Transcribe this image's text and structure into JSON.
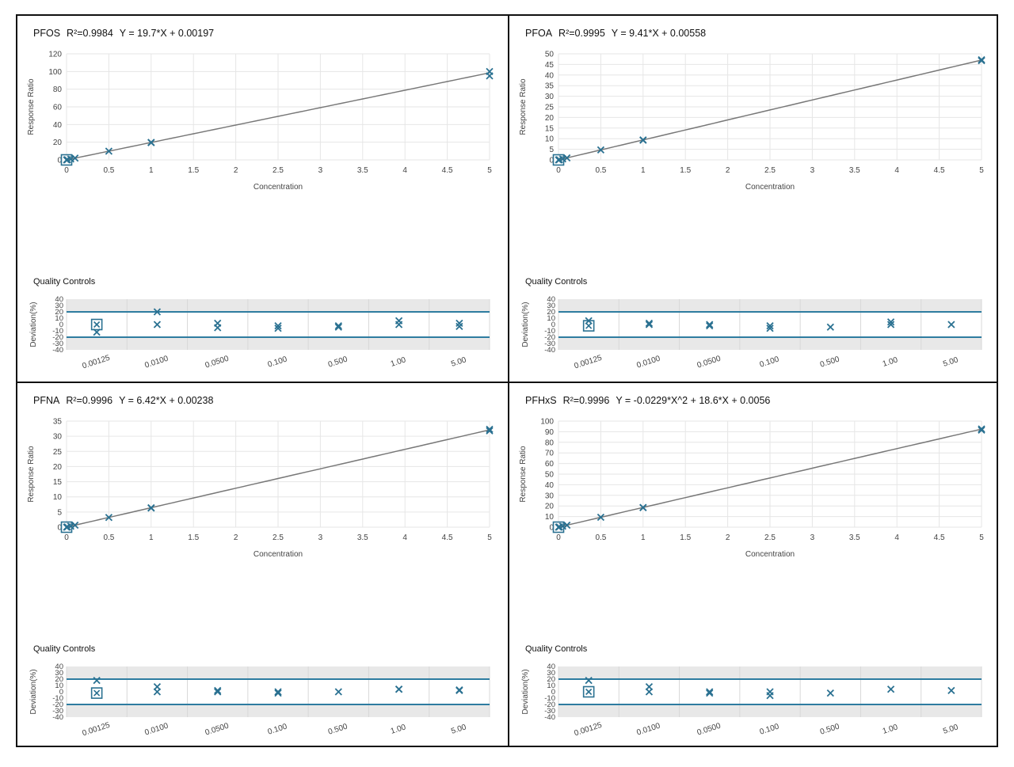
{
  "chart_data": [
    {
      "type": "scatter",
      "analyte": "PFOS",
      "r2": "R²=0.9984",
      "equation": "Y = 19.7*X + 0.00197",
      "xlabel": "Concentration",
      "ylabel": "Response Ratio",
      "xlim": [
        0,
        5
      ],
      "ylim": [
        0,
        120
      ],
      "xticks": [
        "0",
        "0.5",
        "1",
        "1.5",
        "2",
        "2.5",
        "3",
        "3.5",
        "4",
        "4.5",
        "5"
      ],
      "yticks": [
        "0",
        "20",
        "40",
        "60",
        "80",
        "100",
        "120"
      ],
      "fit": {
        "a": 0,
        "b": 19.7,
        "c": 0.00197
      },
      "points": [
        [
          0.00125,
          0.026
        ],
        [
          0.01,
          0.2
        ],
        [
          0.05,
          0.99
        ],
        [
          0.1,
          1.97
        ],
        [
          0.5,
          9.85
        ],
        [
          1,
          19.8
        ],
        [
          1,
          19.5
        ],
        [
          5,
          100
        ],
        [
          5,
          95
        ]
      ],
      "qc": {
        "title": "Quality Controls",
        "ylabel": "Deviation(%)",
        "yticks": [
          "40",
          "30",
          "20",
          "10",
          "0",
          "-10",
          "-20",
          "-30",
          "-40"
        ],
        "limits": [
          20,
          -20
        ],
        "categories": [
          "0.00125",
          "0.0100",
          "0.0500",
          "0.100",
          "0.500",
          "1.00",
          "5.00"
        ],
        "excluded": [
          [
            0,
            0
          ]
        ],
        "points": [
          [
            0,
            -12
          ],
          [
            1,
            20
          ],
          [
            1,
            0
          ],
          [
            2,
            2
          ],
          [
            2,
            -5
          ],
          [
            3,
            -2
          ],
          [
            3,
            -6
          ],
          [
            4,
            -2
          ],
          [
            4,
            -4
          ],
          [
            5,
            6
          ],
          [
            5,
            0
          ],
          [
            6,
            2
          ],
          [
            6,
            -3
          ]
        ]
      }
    },
    {
      "type": "scatter",
      "analyte": "PFOA",
      "r2": "R²=0.9995",
      "equation": "Y = 9.41*X + 0.00558",
      "xlabel": "Concentration",
      "ylabel": "Response Ratio",
      "xlim": [
        0,
        5
      ],
      "ylim": [
        0,
        50
      ],
      "xticks": [
        "0",
        "0.5",
        "1",
        "1.5",
        "2",
        "2.5",
        "3",
        "3.5",
        "4",
        "4.5",
        "5"
      ],
      "yticks": [
        "0",
        "5",
        "10",
        "15",
        "20",
        "25",
        "30",
        "35",
        "40",
        "45",
        "50"
      ],
      "fit": {
        "a": 0,
        "b": 9.41,
        "c": 0.00558
      },
      "points": [
        [
          0.00125,
          0.017
        ],
        [
          0.01,
          0.1
        ],
        [
          0.05,
          0.48
        ],
        [
          0.1,
          0.95
        ],
        [
          0.5,
          4.7
        ],
        [
          1,
          9.4
        ],
        [
          1,
          9.3
        ],
        [
          5,
          47.2
        ],
        [
          5,
          46.8
        ]
      ],
      "qc": {
        "title": "Quality Controls",
        "ylabel": "Deviation(%)",
        "yticks": [
          "40",
          "30",
          "20",
          "10",
          "0",
          "-10",
          "-20",
          "-30",
          "-40"
        ],
        "limits": [
          20,
          -20
        ],
        "categories": [
          "0.00125",
          "0.0100",
          "0.0500",
          "0.100",
          "0.500",
          "1.00",
          "5.00"
        ],
        "excluded": [
          [
            0,
            -2
          ]
        ],
        "points": [
          [
            0,
            6
          ],
          [
            1,
            2
          ],
          [
            1,
            0
          ],
          [
            2,
            0
          ],
          [
            2,
            -2
          ],
          [
            3,
            -2
          ],
          [
            3,
            -6
          ],
          [
            4,
            -4
          ],
          [
            5,
            4
          ],
          [
            5,
            0
          ],
          [
            6,
            0
          ]
        ]
      }
    },
    {
      "type": "scatter",
      "analyte": "PFNA",
      "r2": "R²=0.9996",
      "equation": "Y = 6.42*X + 0.00238",
      "xlabel": "Concentration",
      "ylabel": "Response Ratio",
      "xlim": [
        0,
        5
      ],
      "ylim": [
        0,
        35
      ],
      "xticks": [
        "0",
        "0.5",
        "1",
        "1.5",
        "2",
        "2.5",
        "3",
        "3.5",
        "4",
        "4.5",
        "5"
      ],
      "yticks": [
        "0",
        "5",
        "10",
        "15",
        "20",
        "25",
        "30",
        "35"
      ],
      "fit": {
        "a": 0,
        "b": 6.42,
        "c": 0.00238
      },
      "points": [
        [
          0.00125,
          0.01
        ],
        [
          0.01,
          0.07
        ],
        [
          0.05,
          0.33
        ],
        [
          0.1,
          0.65
        ],
        [
          0.5,
          3.2
        ],
        [
          1,
          6.4
        ],
        [
          1,
          6.3
        ],
        [
          5,
          32.3
        ],
        [
          5,
          31.8
        ]
      ],
      "qc": {
        "title": "Quality Controls",
        "ylabel": "Deviation(%)",
        "yticks": [
          "40",
          "30",
          "20",
          "10",
          "0",
          "-10",
          "-20",
          "-30",
          "-40"
        ],
        "limits": [
          20,
          -20
        ],
        "categories": [
          "0.00125",
          "0.0100",
          "0.0500",
          "0.100",
          "0.500",
          "1.00",
          "5.00"
        ],
        "excluded": [
          [
            0,
            -2
          ]
        ],
        "points": [
          [
            0,
            18
          ],
          [
            1,
            8
          ],
          [
            1,
            0
          ],
          [
            2,
            2
          ],
          [
            2,
            0
          ],
          [
            3,
            0
          ],
          [
            3,
            -2
          ],
          [
            4,
            0
          ],
          [
            5,
            4
          ],
          [
            5,
            4
          ],
          [
            6,
            2
          ],
          [
            6,
            3
          ]
        ]
      }
    },
    {
      "type": "scatter",
      "analyte": "PFHxS",
      "r2": "R²=0.9996",
      "equation": "Y = -0.0229*X^2 + 18.6*X + 0.0056",
      "xlabel": "Concentration",
      "ylabel": "Response Ratio",
      "xlim": [
        0,
        5
      ],
      "ylim": [
        0,
        100
      ],
      "xticks": [
        "0",
        "0.5",
        "1",
        "1.5",
        "2",
        "2.5",
        "3",
        "3.5",
        "4",
        "4.5",
        "5"
      ],
      "yticks": [
        "0",
        "10",
        "20",
        "30",
        "40",
        "50",
        "60",
        "70",
        "80",
        "90",
        "100"
      ],
      "fit": {
        "a": -0.0229,
        "b": 18.6,
        "c": 0.0056
      },
      "points": [
        [
          0.00125,
          0.03
        ],
        [
          0.01,
          0.19
        ],
        [
          0.05,
          0.93
        ],
        [
          0.1,
          1.87
        ],
        [
          0.5,
          9.3
        ],
        [
          1,
          18.6
        ],
        [
          1,
          18.4
        ],
        [
          5,
          92.5
        ],
        [
          5,
          91.5
        ]
      ],
      "qc": {
        "title": "Quality Controls",
        "ylabel": "Deviation(%)",
        "yticks": [
          "40",
          "30",
          "20",
          "10",
          "0",
          "-10",
          "-20",
          "-30",
          "-40"
        ],
        "limits": [
          20,
          -20
        ],
        "categories": [
          "0.00125",
          "0.0100",
          "0.0500",
          "0.100",
          "0.500",
          "1.00",
          "5.00"
        ],
        "excluded": [
          [
            0,
            0
          ]
        ],
        "points": [
          [
            0,
            18
          ],
          [
            1,
            8
          ],
          [
            1,
            0
          ],
          [
            2,
            0
          ],
          [
            2,
            -2
          ],
          [
            3,
            0
          ],
          [
            3,
            -6
          ],
          [
            4,
            -2
          ],
          [
            5,
            4
          ],
          [
            6,
            2
          ]
        ]
      }
    }
  ]
}
